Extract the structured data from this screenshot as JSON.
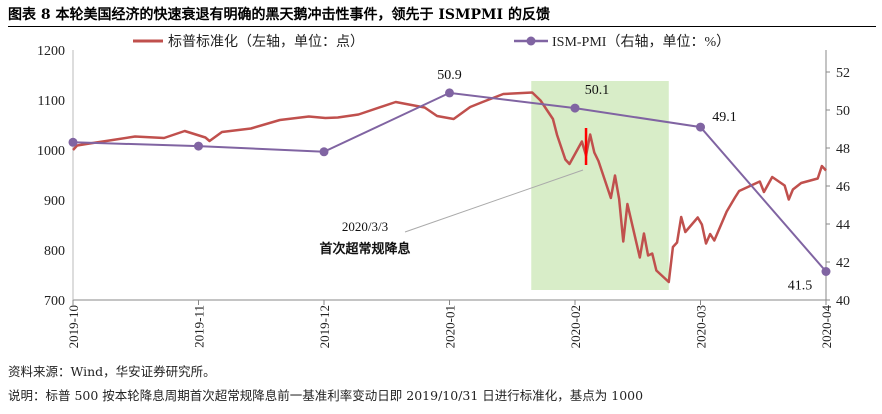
{
  "title": "图表 8 本轮美国经济的快速衰退有明确的黑天鹅冲击性事件，领先于 ISMPMI 的反馈",
  "source": "资料来源：Wind，华安证券研究所。",
  "note": "说明：标普 500 按本轮降息周期首次超常规降息前一基准利率变动日即 2019/10/31 日进行标准化，基点为 1000",
  "chart_data": {
    "type": "line",
    "legend_position": "top",
    "grid": false,
    "x_tick_labels": [
      "2019-10",
      "2019-11",
      "2019-12",
      "2020-01",
      "2020-02",
      "2020-03",
      "2020-04"
    ],
    "y_left": {
      "ticks": [
        700,
        800,
        900,
        1000,
        1100,
        1200
      ],
      "range": [
        700,
        1200
      ]
    },
    "y_right": {
      "ticks": [
        40,
        42,
        44,
        46,
        48,
        50,
        52
      ],
      "range": [
        40,
        52.5
      ]
    },
    "colors": {
      "spx": "#C0504D",
      "pmi": "#8064A2",
      "highlight": "#D8EDC8",
      "event": "#FF0000"
    },
    "series": [
      {
        "name": "标普标准化（左轴，单位：点）",
        "axis": "left",
        "points": [
          [
            "2019-10-31",
            1000
          ],
          [
            "2019-11-01",
            1009
          ],
          [
            "2019-11-04",
            1013
          ],
          [
            "2019-11-08",
            1018
          ],
          [
            "2019-11-15",
            1027
          ],
          [
            "2019-11-22",
            1024
          ],
          [
            "2019-11-27",
            1038
          ],
          [
            "2019-12-02",
            1025
          ],
          [
            "2019-12-03",
            1018
          ],
          [
            "2019-12-06",
            1036
          ],
          [
            "2019-12-13",
            1043
          ],
          [
            "2019-12-20",
            1060
          ],
          [
            "2019-12-27",
            1067
          ],
          [
            "2019-12-31",
            1064
          ],
          [
            "2020-01-03",
            1065
          ],
          [
            "2020-01-08",
            1071
          ],
          [
            "2020-01-17",
            1096
          ],
          [
            "2020-01-24",
            1085
          ],
          [
            "2020-01-27",
            1068
          ],
          [
            "2020-01-31",
            1062
          ],
          [
            "2020-02-04",
            1086
          ],
          [
            "2020-02-07",
            1096
          ],
          [
            "2020-02-12",
            1112
          ],
          [
            "2020-02-19",
            1115
          ],
          [
            "2020-02-21",
            1099
          ],
          [
            "2020-02-24",
            1062
          ],
          [
            "2020-02-25",
            1030
          ],
          [
            "2020-02-27",
            981
          ],
          [
            "2020-02-28",
            972
          ],
          [
            "2020-03-02",
            1017
          ],
          [
            "2020-03-03",
            989
          ],
          [
            "2020-03-04",
            1031
          ],
          [
            "2020-03-05",
            995
          ],
          [
            "2020-03-06",
            978
          ],
          [
            "2020-03-09",
            904
          ],
          [
            "2020-03-10",
            949
          ],
          [
            "2020-03-11",
            902
          ],
          [
            "2020-03-12",
            817
          ],
          [
            "2020-03-13",
            892
          ],
          [
            "2020-03-16",
            785
          ],
          [
            "2020-03-17",
            833
          ],
          [
            "2020-03-18",
            789
          ],
          [
            "2020-03-19",
            793
          ],
          [
            "2020-03-20",
            759
          ],
          [
            "2020-03-23",
            736
          ],
          [
            "2020-03-24",
            806
          ],
          [
            "2020-03-25",
            815
          ],
          [
            "2020-03-26",
            866
          ],
          [
            "2020-03-27",
            836
          ],
          [
            "2020-03-30",
            865
          ],
          [
            "2020-03-31",
            851
          ],
          [
            "2020-04-01",
            813
          ],
          [
            "2020-04-02",
            832
          ],
          [
            "2020-04-03",
            819
          ],
          [
            "2020-04-06",
            877
          ],
          [
            "2020-04-08",
            905
          ],
          [
            "2020-04-09",
            918
          ],
          [
            "2020-04-14",
            937
          ],
          [
            "2020-04-15",
            916
          ],
          [
            "2020-04-17",
            946
          ],
          [
            "2020-04-20",
            929
          ],
          [
            "2020-04-21",
            901
          ],
          [
            "2020-04-22",
            921
          ],
          [
            "2020-04-24",
            934
          ],
          [
            "2020-04-28",
            943
          ],
          [
            "2020-04-29",
            968
          ],
          [
            "2020-04-30",
            959
          ]
        ]
      },
      {
        "name": "ISM-PMI（右轴，单位：%）",
        "axis": "right",
        "categories": [
          "2019-10",
          "2019-11",
          "2019-12",
          "2020-01",
          "2020-02",
          "2020-03",
          "2020-04"
        ],
        "values": [
          48.3,
          48.1,
          47.8,
          50.9,
          50.1,
          49.1,
          41.5
        ],
        "labels": [
          "",
          "",
          "",
          "50.9",
          "50.1",
          "49.1",
          "41.5"
        ]
      }
    ],
    "highlight_range": [
      "2020-02-19",
      "2020-03-23"
    ],
    "annotation": {
      "date": "2020-03-03",
      "line1": "2020/3/3",
      "line2": "首次超常规降息",
      "range": [
        970,
        1044
      ]
    }
  }
}
